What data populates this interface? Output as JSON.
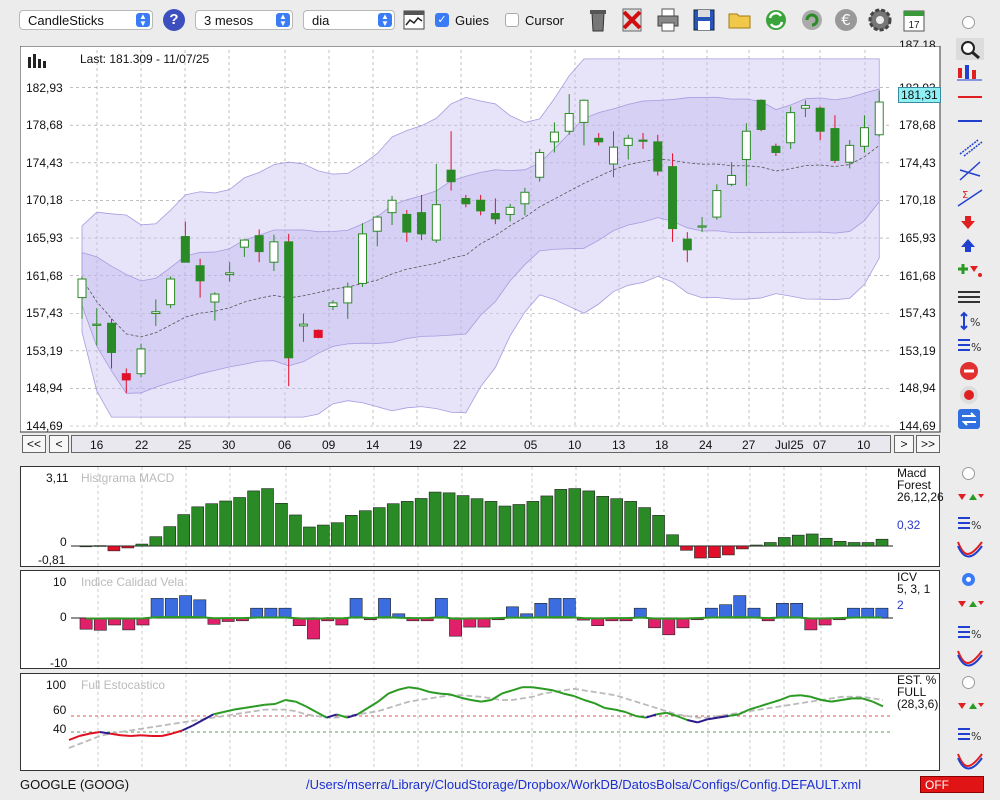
{
  "toolbar": {
    "chart_type": "CandleSticks",
    "period": "3 mesos",
    "interval": "dia",
    "guides_label": "Guies",
    "guides_checked": true,
    "cursor_label": "Cursor",
    "cursor_checked": false
  },
  "main_chart": {
    "last_label": "Last: 181.309 - 11/07/25",
    "price_marker": "181,31",
    "y_ticks": [
      "182,93",
      "178,68",
      "174,43",
      "170,18",
      "165,93",
      "161,68",
      "157,43",
      "153,19",
      "148,94",
      "144,69"
    ],
    "y_top_partial": "187,18",
    "x_labels": [
      "16",
      "22",
      "25",
      "30",
      "06",
      "09",
      "14",
      "19",
      "22",
      "05",
      "10",
      "13",
      "18",
      "24",
      "27",
      "Jul25",
      "07",
      "10"
    ],
    "nav_buttons": [
      "<<",
      "<",
      ">",
      ">>"
    ]
  },
  "macd": {
    "title": "Histgrama MACD",
    "y_ticks": [
      "3,11",
      "0",
      "-0,81"
    ],
    "side_name_1": "Macd",
    "side_name_2": "Forest",
    "side_params": "26,12,26",
    "side_value": "0,32"
  },
  "icv": {
    "title": "Indice Calidad Vela",
    "y_ticks": [
      "10",
      "0",
      "-10"
    ],
    "side_name": "ICV",
    "side_params": "5, 3, 1",
    "side_value": "2"
  },
  "stoch": {
    "title": "Full Estocastico",
    "y_ticks": [
      "100",
      "60",
      "40"
    ],
    "side_name_1": "EST. %",
    "side_name_2": "FULL",
    "side_params": "(28,3,6)"
  },
  "status": {
    "symbol": "GOOGLE (GOOG)",
    "path": "/Users/mserra/Library/CloudStorage/Dropbox/WorkDB/DatosBolsa/Configs/Config.DEFAULT.xml",
    "badge": "OFF"
  },
  "icons": {
    "toolbar": [
      "bar-chart-icon",
      "checkbox-icon",
      "trash-icon",
      "delete-icon",
      "printer-icon",
      "save-icon",
      "folder-icon",
      "refresh-icon",
      "reload-icon",
      "euro-icon",
      "gear-icon",
      "calendar-icon"
    ],
    "side": [
      "zoom-icon",
      "candle-icon",
      "horizontal-line-icon",
      "line-icon",
      "channel-icon",
      "trendline-icon",
      "fibonacci-icon",
      "down-arrow-icon",
      "up-arrow-icon",
      "arrows-icon",
      "bars-icon",
      "scale-icon",
      "percent-icon",
      "stop-icon",
      "record-icon",
      "swap-icon"
    ]
  },
  "colors": {
    "bull": "#2a8a25",
    "bear": "#e0102a",
    "band": "#c9c2f0",
    "macd_pos": "#2a8a25",
    "macd_neg": "#e0102a",
    "icv_pos": "#3b6de0",
    "icv_neg": "#e0206a",
    "stoch_green": "#2a9a22",
    "stoch_navy": "#2a1a8a",
    "stoch_red": "#e01020"
  },
  "chart_data": [
    {
      "type": "candlestick",
      "title": "Last: 181.309 - 11/07/25",
      "ylim": [
        144.69,
        187.18
      ],
      "y_ticks": [
        144.69,
        148.94,
        153.19,
        157.43,
        161.68,
        165.93,
        170.18,
        174.43,
        178.68,
        182.93
      ],
      "x_labels": [
        "16",
        "22",
        "25",
        "30",
        "06",
        "09",
        "14",
        "19",
        "22",
        "05",
        "10",
        "13",
        "18",
        "24",
        "27",
        "Jul25",
        "07",
        "10"
      ],
      "candles": [
        {
          "o": 159.2,
          "h": 161.6,
          "l": 156.8,
          "c": 161.3
        },
        {
          "o": 156.2,
          "h": 158.0,
          "l": 153.8,
          "c": 156.2
        },
        {
          "o": 156.3,
          "h": 156.8,
          "l": 151.2,
          "c": 153.0
        },
        {
          "o": 150.6,
          "h": 151.2,
          "l": 148.4,
          "c": 149.9
        },
        {
          "o": 150.6,
          "h": 154.0,
          "l": 150.2,
          "c": 153.4
        },
        {
          "o": 157.4,
          "h": 159.0,
          "l": 156.0,
          "c": 157.6
        },
        {
          "o": 158.4,
          "h": 161.6,
          "l": 158.0,
          "c": 161.3
        },
        {
          "o": 166.1,
          "h": 167.8,
          "l": 163.2,
          "c": 163.2
        },
        {
          "o": 162.8,
          "h": 163.6,
          "l": 159.2,
          "c": 161.1
        },
        {
          "o": 158.7,
          "h": 159.8,
          "l": 156.6,
          "c": 159.6
        },
        {
          "o": 161.8,
          "h": 163.2,
          "l": 161.0,
          "c": 162.0
        },
        {
          "o": 164.9,
          "h": 165.8,
          "l": 163.8,
          "c": 165.7
        },
        {
          "o": 166.2,
          "h": 166.9,
          "l": 163.2,
          "c": 164.4
        },
        {
          "o": 163.2,
          "h": 166.3,
          "l": 162.2,
          "c": 165.5
        },
        {
          "o": 165.5,
          "h": 166.4,
          "l": 149.2,
          "c": 152.4
        },
        {
          "o": 156.0,
          "h": 157.4,
          "l": 154.2,
          "c": 156.2
        },
        {
          "o": 155.5,
          "h": 155.6,
          "l": 154.6,
          "c": 154.7
        },
        {
          "o": 158.2,
          "h": 158.9,
          "l": 157.8,
          "c": 158.6
        },
        {
          "o": 158.6,
          "h": 160.9,
          "l": 156.8,
          "c": 160.4
        },
        {
          "o": 160.8,
          "h": 167.6,
          "l": 160.4,
          "c": 166.4
        },
        {
          "o": 166.7,
          "h": 168.5,
          "l": 165.0,
          "c": 168.3
        },
        {
          "o": 168.8,
          "h": 170.7,
          "l": 167.4,
          "c": 170.2
        },
        {
          "o": 168.6,
          "h": 169.1,
          "l": 165.5,
          "c": 166.6
        },
        {
          "o": 168.8,
          "h": 170.8,
          "l": 165.7,
          "c": 166.4
        },
        {
          "o": 165.7,
          "h": 174.3,
          "l": 165.4,
          "c": 169.7
        },
        {
          "o": 173.6,
          "h": 178.0,
          "l": 171.3,
          "c": 172.3
        },
        {
          "o": 170.4,
          "h": 170.8,
          "l": 169.4,
          "c": 169.8
        },
        {
          "o": 170.2,
          "h": 170.8,
          "l": 168.5,
          "c": 169.0
        },
        {
          "o": 168.7,
          "h": 170.4,
          "l": 167.5,
          "c": 168.1
        },
        {
          "o": 168.6,
          "h": 169.8,
          "l": 167.8,
          "c": 169.4
        },
        {
          "o": 169.8,
          "h": 171.6,
          "l": 168.5,
          "c": 171.1
        },
        {
          "o": 172.8,
          "h": 176.0,
          "l": 172.3,
          "c": 175.6
        },
        {
          "o": 176.8,
          "h": 179.0,
          "l": 175.6,
          "c": 177.9
        },
        {
          "o": 178.0,
          "h": 182.2,
          "l": 177.6,
          "c": 180.0
        },
        {
          "o": 179.0,
          "h": 181.6,
          "l": 176.4,
          "c": 181.5
        },
        {
          "o": 177.2,
          "h": 177.8,
          "l": 176.4,
          "c": 176.8
        },
        {
          "o": 174.3,
          "h": 178.0,
          "l": 172.8,
          "c": 176.2
        },
        {
          "o": 176.4,
          "h": 177.6,
          "l": 174.8,
          "c": 177.2
        },
        {
          "o": 177.0,
          "h": 177.8,
          "l": 176.0,
          "c": 176.9
        },
        {
          "o": 176.8,
          "h": 177.6,
          "l": 173.0,
          "c": 173.5
        },
        {
          "o": 174.0,
          "h": 175.5,
          "l": 165.5,
          "c": 167.0
        },
        {
          "o": 165.8,
          "h": 166.6,
          "l": 163.2,
          "c": 164.6
        },
        {
          "o": 167.3,
          "h": 168.3,
          "l": 166.6,
          "c": 167.3
        },
        {
          "o": 168.3,
          "h": 172.0,
          "l": 168.0,
          "c": 171.3
        },
        {
          "o": 172.0,
          "h": 174.5,
          "l": 171.8,
          "c": 173.0
        },
        {
          "o": 174.8,
          "h": 178.9,
          "l": 171.8,
          "c": 178.0
        },
        {
          "o": 181.5,
          "h": 181.6,
          "l": 178.0,
          "c": 178.2
        },
        {
          "o": 176.3,
          "h": 176.6,
          "l": 175.2,
          "c": 175.6
        },
        {
          "o": 176.7,
          "h": 180.8,
          "l": 176.0,
          "c": 180.1
        },
        {
          "o": 180.6,
          "h": 181.5,
          "l": 179.6,
          "c": 180.9
        },
        {
          "o": 180.6,
          "h": 180.8,
          "l": 177.0,
          "c": 178.0
        },
        {
          "o": 178.3,
          "h": 179.8,
          "l": 174.4,
          "c": 174.7
        },
        {
          "o": 174.5,
          "h": 177.0,
          "l": 173.8,
          "c": 176.4
        },
        {
          "o": 176.3,
          "h": 179.8,
          "l": 175.6,
          "c": 178.4
        },
        {
          "o": 177.6,
          "h": 182.6,
          "l": 177.4,
          "c": 181.3
        }
      ]
    },
    {
      "type": "bar",
      "title": "Histgrama MACD",
      "ylim": [
        -0.81,
        3.11
      ],
      "values": [
        0.0,
        0.02,
        -0.25,
        -0.1,
        0.1,
        0.48,
        1.0,
        1.62,
        2.02,
        2.18,
        2.32,
        2.5,
        2.84,
        2.96,
        2.2,
        1.6,
        0.98,
        1.08,
        1.2,
        1.58,
        1.82,
        1.98,
        2.18,
        2.3,
        2.45,
        2.78,
        2.74,
        2.6,
        2.44,
        2.3,
        2.06,
        2.14,
        2.3,
        2.58,
        2.92,
        2.96,
        2.84,
        2.56,
        2.44,
        2.3,
        1.98,
        1.58,
        0.58,
        -0.22,
        -0.62,
        -0.6,
        -0.46,
        -0.15,
        0.05,
        0.18,
        0.44,
        0.56,
        0.62,
        0.4,
        0.24,
        0.18,
        0.18,
        0.35
      ]
    },
    {
      "type": "bar",
      "title": "Indice Calidad Vela",
      "ylim": [
        -10,
        10
      ],
      "values": [
        -3.2,
        -3.5,
        -2.0,
        -3.4,
        -2.0,
        5.6,
        5.6,
        6.4,
        5.2,
        -1.8,
        -1.0,
        -0.8,
        2.8,
        2.8,
        2.8,
        -2.2,
        -6.0,
        -0.8,
        -2.0,
        5.6,
        -0.5,
        5.6,
        1.2,
        -0.8,
        -0.8,
        5.6,
        -5.2,
        -2.6,
        -2.6,
        -0.5,
        3.2,
        1.2,
        4.2,
        5.6,
        5.6,
        -0.6,
        -2.2,
        -0.8,
        -0.8,
        2.8,
        -2.8,
        -4.8,
        -2.8,
        -0.5,
        2.8,
        3.8,
        6.4,
        2.8,
        -0.8,
        4.2,
        4.2,
        -3.4,
        -2.0,
        -0.5,
        2.8,
        2.8,
        2.8
      ]
    },
    {
      "type": "line",
      "title": "Full Estocastico",
      "ylim": [
        0,
        100
      ],
      "y_ticks": [
        100,
        60,
        40
      ],
      "series": [
        {
          "values": [
            30,
            35,
            38,
            40,
            38,
            36,
            35,
            36,
            35,
            35,
            38,
            42,
            48,
            55,
            62,
            65,
            68,
            70,
            72,
            74,
            75,
            80,
            78,
            72,
            65,
            58,
            62,
            58,
            62,
            70,
            78,
            88,
            93,
            96,
            94,
            90,
            88,
            87,
            83,
            80,
            78,
            80,
            88,
            92,
            96,
            96,
            94,
            92,
            88,
            85,
            80,
            76,
            70,
            68,
            65,
            60,
            58,
            62,
            64,
            60,
            55,
            52,
            56,
            58,
            60,
            62,
            68,
            72,
            76,
            80,
            85,
            86,
            84,
            80,
            78,
            80,
            82,
            82,
            78,
            72
          ]
        },
        {
          "values": [
            20,
            25,
            30,
            35,
            38,
            40,
            42,
            44,
            46,
            48,
            50,
            52,
            54,
            56,
            58,
            60,
            62,
            64,
            66,
            68,
            68,
            68,
            66,
            62,
            60,
            58,
            58,
            60,
            62,
            64,
            66,
            70,
            74,
            78,
            80,
            82,
            84,
            86,
            86,
            85,
            84,
            82,
            80,
            80,
            82,
            84,
            88,
            90,
            92,
            94,
            92,
            90,
            88,
            86,
            82,
            78,
            74,
            70,
            66,
            62,
            60,
            58,
            58,
            60,
            62,
            64,
            66,
            68,
            70,
            72,
            74,
            76,
            78,
            80,
            82,
            84,
            84,
            84,
            82,
            80
          ]
        }
      ]
    }
  ]
}
